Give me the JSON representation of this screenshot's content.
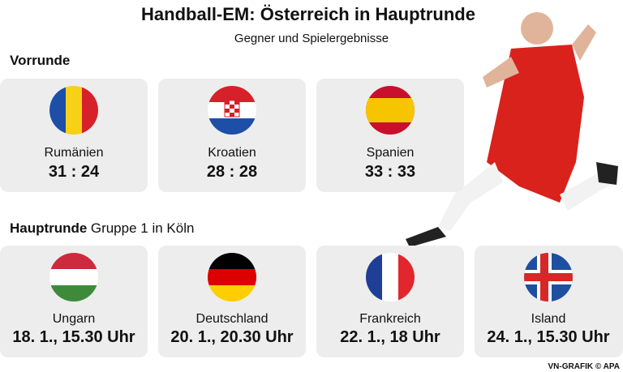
{
  "header": {
    "title": "Handball-EM: Österreich in Hauptrunde",
    "subtitle": "Gegner und Spielergebnisse"
  },
  "vorrunde": {
    "label": "Vorrunde",
    "games": [
      {
        "team": "Rumänien",
        "result": "31 : 24"
      },
      {
        "team": "Kroatien",
        "result": "28 : 28"
      },
      {
        "team": "Spanien",
        "result": "33 : 33"
      }
    ]
  },
  "hauptrunde": {
    "label": "Hauptrunde",
    "detail": "Gruppe 1 in Köln",
    "games": [
      {
        "team": "Ungarn",
        "date": "18. 1., 15.30 Uhr"
      },
      {
        "team": "Deutschland",
        "date": "20. 1., 20.30 Uhr"
      },
      {
        "team": "Frankreich",
        "date": "22. 1., 18 Uhr"
      },
      {
        "team": "Island",
        "date": "24. 1., 15.30 Uhr"
      }
    ]
  },
  "credit": "VN-GRAFIK © APA"
}
